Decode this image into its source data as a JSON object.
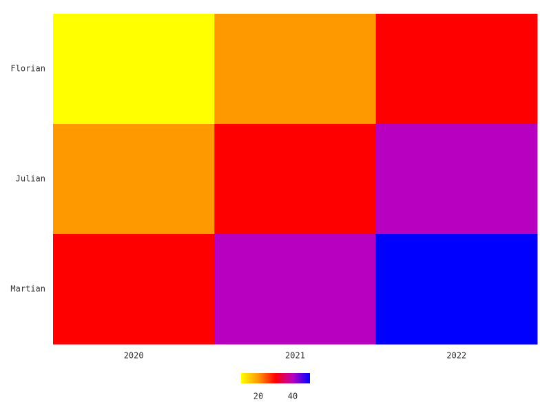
{
  "chart_data": {
    "type": "heatmap",
    "title": "",
    "xlabel": "",
    "ylabel": "",
    "x_categories": [
      "2020",
      "2021",
      "2022"
    ],
    "y_categories": [
      "Florian",
      "Julian",
      "Martian"
    ],
    "values": [
      [
        10,
        20,
        30
      ],
      [
        20,
        30,
        40
      ],
      [
        30,
        40,
        50
      ]
    ],
    "cell_colors": [
      [
        "#ffff00",
        "#ff9900",
        "#ff0000"
      ],
      [
        "#ff9900",
        "#ff0000",
        "#b800c0"
      ],
      [
        "#ff0000",
        "#b800c0",
        "#0000ff"
      ]
    ],
    "colorbar": {
      "range": [
        10,
        50
      ],
      "tick_values": [
        20,
        40
      ],
      "tick_labels": [
        "20",
        "40"
      ],
      "stops": [
        "#ffff00",
        "#ff9900",
        "#ff0000",
        "#b800c0",
        "#0000ff"
      ]
    },
    "legend_position": "bottom"
  }
}
